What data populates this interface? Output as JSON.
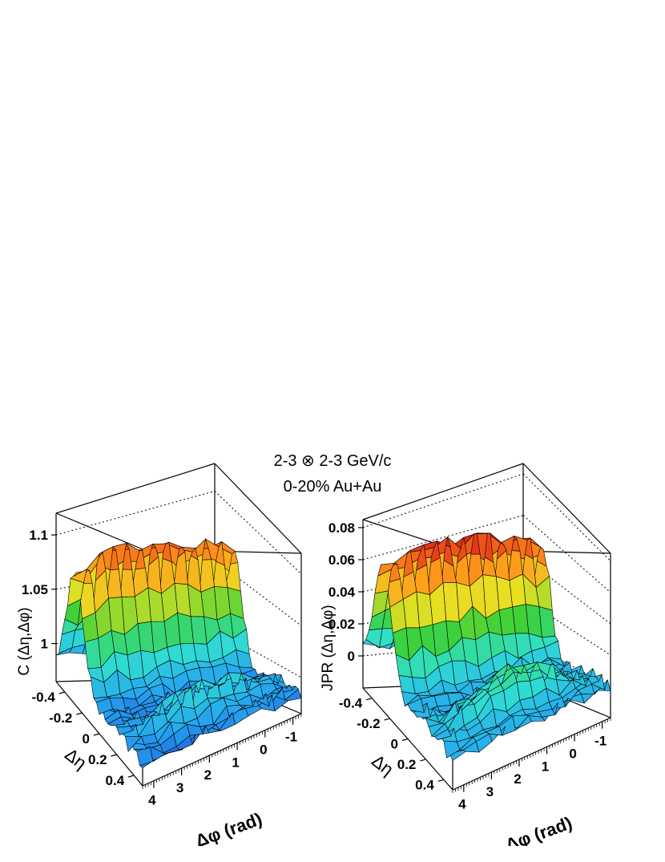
{
  "figure": {
    "title": "2-3 ⊗ 2-3 GeV/c",
    "subtitle": "0-20% Au+Au"
  },
  "chart_data": [
    {
      "type": "surface3d",
      "zlabel": "C (Δη,Δφ)",
      "xlabel": "Δφ (rad)",
      "ylabel": "Δη",
      "x_ticks": [
        "4",
        "3",
        "2",
        "1",
        "0",
        "-1"
      ],
      "y_ticks": [
        "-0.4",
        "-0.2",
        "0",
        "0.2",
        "0.4"
      ],
      "z_ticks": [
        "1",
        "1.05",
        "1.1"
      ],
      "xlim": [
        -1.3,
        4.4
      ],
      "ylim": [
        -0.5,
        0.5
      ],
      "zlim": [
        0.965,
        1.12
      ],
      "near_side_peak": {
        "dphi": 0.0,
        "value": 1.012
      },
      "away_side_peak": {
        "dphi": 3.14,
        "value": 1.105
      },
      "baseline": 0.985,
      "colormap": [
        "#1a2fd0",
        "#27a7ef",
        "#30e0d0",
        "#3cd13a",
        "#e8e022",
        "#ff9a1a",
        "#e0261a"
      ]
    },
    {
      "type": "surface3d",
      "zlabel": "JPR (Δη,Δφ)",
      "xlabel": "Δφ (rad)",
      "ylabel": "Δη",
      "x_ticks": [
        "4",
        "3",
        "2",
        "1",
        "0",
        "-1"
      ],
      "y_ticks": [
        "-0.4",
        "-0.2",
        "0",
        "0.2",
        "0.4"
      ],
      "z_ticks": [
        "0",
        "0.02",
        "0.04",
        "0.06",
        "0.08"
      ],
      "xlim": [
        -1.3,
        4.4
      ],
      "ylim": [
        -0.5,
        0.5
      ],
      "zlim": [
        -0.02,
        0.085
      ],
      "near_side_peak": {
        "dphi": 0.0,
        "value": 0.025
      },
      "away_side_peak": {
        "dphi": 3.14,
        "value": 0.08
      },
      "baseline": 0.0,
      "colormap": [
        "#1a2fd0",
        "#27a7ef",
        "#30e0d0",
        "#3cd13a",
        "#e8e022",
        "#ff9a1a",
        "#e0261a"
      ]
    }
  ]
}
